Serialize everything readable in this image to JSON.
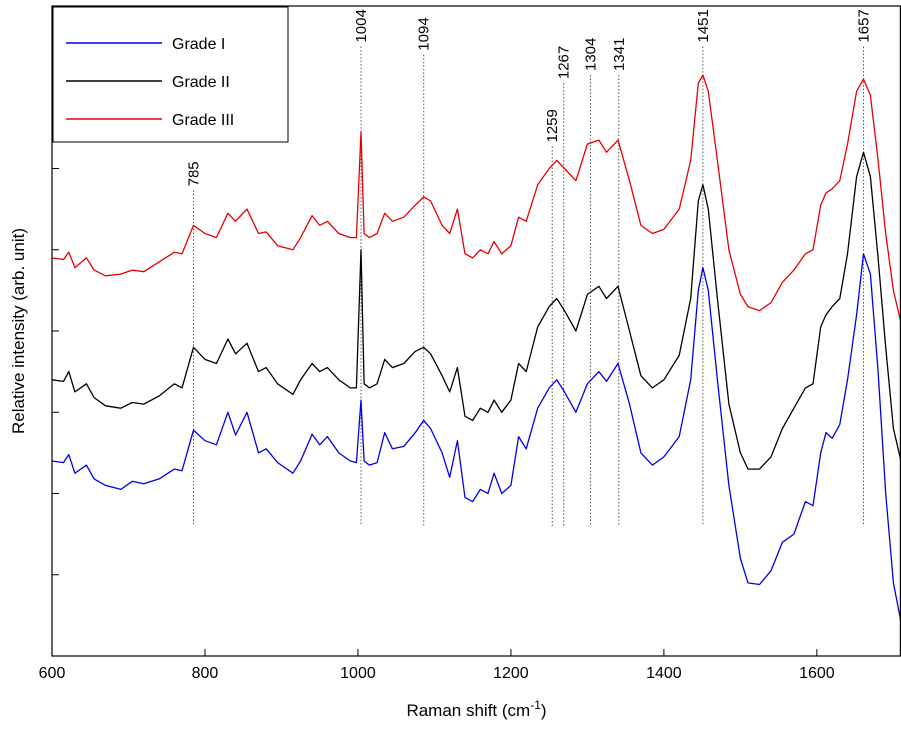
{
  "chart_data": {
    "type": "line",
    "title": "",
    "xlabel": "Raman shift (cm",
    "xlabel_sup": "-1",
    "xlabel_close": ")",
    "ylabel": "Relative intensity (arb. unit)",
    "xlim": [
      600,
      1710
    ],
    "ylim": [
      0,
      8
    ],
    "x_ticks": [
      600,
      800,
      1000,
      1200,
      1400,
      1600
    ],
    "y_ticks_unlabeled": [
      1,
      2,
      3,
      4,
      5,
      6,
      7
    ],
    "grid": false,
    "legend_position": "top-left",
    "legend_box": true,
    "peak_labels": [
      "785",
      "1004",
      "1094",
      "1259",
      "1267",
      "1304",
      "1341",
      "1451",
      "1657"
    ],
    "peak_marker_lines": [
      {
        "x": 785,
        "label": "785"
      },
      {
        "x": 1004,
        "label": "1004"
      },
      {
        "x": 1086,
        "label": "1094"
      },
      {
        "x": 1254,
        "label": "1259"
      },
      {
        "x": 1269,
        "label": "1267"
      },
      {
        "x": 1304,
        "label": "1304"
      },
      {
        "x": 1341,
        "label": "1341"
      },
      {
        "x": 1451,
        "label": "1451"
      },
      {
        "x": 1661,
        "label": "1657"
      }
    ],
    "peak_label_anchor_y": [
      5.78,
      7.55,
      7.45,
      6.32,
      7.1,
      7.2,
      7.2,
      7.55,
      7.55
    ],
    "series": [
      {
        "name": "Grade I",
        "color": "#0000e6",
        "points": [
          [
            600,
            2.4
          ],
          [
            615,
            2.38
          ],
          [
            622,
            2.48
          ],
          [
            630,
            2.25
          ],
          [
            645,
            2.35
          ],
          [
            655,
            2.18
          ],
          [
            670,
            2.1
          ],
          [
            690,
            2.05
          ],
          [
            705,
            2.15
          ],
          [
            720,
            2.12
          ],
          [
            740,
            2.18
          ],
          [
            760,
            2.3
          ],
          [
            770,
            2.28
          ],
          [
            785,
            2.78
          ],
          [
            800,
            2.65
          ],
          [
            815,
            2.6
          ],
          [
            830,
            3.0
          ],
          [
            840,
            2.72
          ],
          [
            855,
            3.0
          ],
          [
            870,
            2.5
          ],
          [
            880,
            2.55
          ],
          [
            895,
            2.38
          ],
          [
            915,
            2.25
          ],
          [
            925,
            2.4
          ],
          [
            940,
            2.73
          ],
          [
            950,
            2.6
          ],
          [
            960,
            2.7
          ],
          [
            975,
            2.5
          ],
          [
            990,
            2.4
          ],
          [
            998,
            2.38
          ],
          [
            1004,
            3.15
          ],
          [
            1008,
            2.4
          ],
          [
            1015,
            2.35
          ],
          [
            1025,
            2.38
          ],
          [
            1035,
            2.75
          ],
          [
            1045,
            2.55
          ],
          [
            1060,
            2.58
          ],
          [
            1075,
            2.75
          ],
          [
            1086,
            2.9
          ],
          [
            1095,
            2.8
          ],
          [
            1110,
            2.5
          ],
          [
            1120,
            2.2
          ],
          [
            1130,
            2.65
          ],
          [
            1140,
            1.95
          ],
          [
            1150,
            1.9
          ],
          [
            1160,
            2.05
          ],
          [
            1170,
            2.0
          ],
          [
            1178,
            2.25
          ],
          [
            1188,
            2.0
          ],
          [
            1200,
            2.1
          ],
          [
            1210,
            2.7
          ],
          [
            1220,
            2.55
          ],
          [
            1235,
            3.05
          ],
          [
            1250,
            3.3
          ],
          [
            1260,
            3.4
          ],
          [
            1270,
            3.25
          ],
          [
            1285,
            3.0
          ],
          [
            1300,
            3.35
          ],
          [
            1315,
            3.5
          ],
          [
            1325,
            3.38
          ],
          [
            1340,
            3.6
          ],
          [
            1355,
            3.1
          ],
          [
            1370,
            2.5
          ],
          [
            1385,
            2.35
          ],
          [
            1400,
            2.45
          ],
          [
            1420,
            2.7
          ],
          [
            1435,
            3.4
          ],
          [
            1445,
            4.5
          ],
          [
            1451,
            4.78
          ],
          [
            1458,
            4.5
          ],
          [
            1470,
            3.4
          ],
          [
            1485,
            2.1
          ],
          [
            1500,
            1.2
          ],
          [
            1510,
            0.9
          ],
          [
            1525,
            0.88
          ],
          [
            1540,
            1.05
          ],
          [
            1555,
            1.4
          ],
          [
            1570,
            1.5
          ],
          [
            1585,
            1.9
          ],
          [
            1595,
            1.85
          ],
          [
            1605,
            2.5
          ],
          [
            1612,
            2.75
          ],
          [
            1620,
            2.68
          ],
          [
            1630,
            2.85
          ],
          [
            1640,
            3.4
          ],
          [
            1652,
            4.2
          ],
          [
            1661,
            4.95
          ],
          [
            1670,
            4.7
          ],
          [
            1680,
            3.5
          ],
          [
            1690,
            2.0
          ],
          [
            1700,
            0.9
          ],
          [
            1710,
            0.42
          ]
        ]
      },
      {
        "name": "Grade II",
        "color": "#000000",
        "points": [
          [
            600,
            3.4
          ],
          [
            615,
            3.38
          ],
          [
            622,
            3.5
          ],
          [
            630,
            3.25
          ],
          [
            645,
            3.35
          ],
          [
            655,
            3.18
          ],
          [
            670,
            3.08
          ],
          [
            690,
            3.05
          ],
          [
            705,
            3.12
          ],
          [
            720,
            3.1
          ],
          [
            740,
            3.2
          ],
          [
            760,
            3.35
          ],
          [
            770,
            3.3
          ],
          [
            785,
            3.8
          ],
          [
            800,
            3.65
          ],
          [
            815,
            3.6
          ],
          [
            830,
            3.9
          ],
          [
            840,
            3.72
          ],
          [
            855,
            3.85
          ],
          [
            870,
            3.5
          ],
          [
            880,
            3.55
          ],
          [
            895,
            3.35
          ],
          [
            915,
            3.22
          ],
          [
            925,
            3.4
          ],
          [
            940,
            3.6
          ],
          [
            950,
            3.5
          ],
          [
            960,
            3.55
          ],
          [
            975,
            3.4
          ],
          [
            990,
            3.3
          ],
          [
            998,
            3.3
          ],
          [
            1004,
            5.0
          ],
          [
            1008,
            3.35
          ],
          [
            1015,
            3.3
          ],
          [
            1025,
            3.35
          ],
          [
            1035,
            3.65
          ],
          [
            1045,
            3.55
          ],
          [
            1060,
            3.6
          ],
          [
            1075,
            3.75
          ],
          [
            1086,
            3.8
          ],
          [
            1095,
            3.72
          ],
          [
            1110,
            3.45
          ],
          [
            1120,
            3.25
          ],
          [
            1130,
            3.55
          ],
          [
            1140,
            2.95
          ],
          [
            1150,
            2.9
          ],
          [
            1160,
            3.05
          ],
          [
            1170,
            3.0
          ],
          [
            1178,
            3.15
          ],
          [
            1188,
            3.0
          ],
          [
            1200,
            3.15
          ],
          [
            1210,
            3.6
          ],
          [
            1220,
            3.5
          ],
          [
            1235,
            4.05
          ],
          [
            1250,
            4.3
          ],
          [
            1260,
            4.4
          ],
          [
            1270,
            4.25
          ],
          [
            1285,
            4.0
          ],
          [
            1300,
            4.45
          ],
          [
            1315,
            4.55
          ],
          [
            1325,
            4.4
          ],
          [
            1340,
            4.55
          ],
          [
            1355,
            4.0
          ],
          [
            1370,
            3.45
          ],
          [
            1385,
            3.3
          ],
          [
            1400,
            3.4
          ],
          [
            1420,
            3.7
          ],
          [
            1435,
            4.4
          ],
          [
            1445,
            5.6
          ],
          [
            1451,
            5.8
          ],
          [
            1458,
            5.5
          ],
          [
            1470,
            4.4
          ],
          [
            1485,
            3.1
          ],
          [
            1500,
            2.5
          ],
          [
            1510,
            2.3
          ],
          [
            1525,
            2.3
          ],
          [
            1540,
            2.45
          ],
          [
            1555,
            2.8
          ],
          [
            1570,
            3.05
          ],
          [
            1585,
            3.3
          ],
          [
            1595,
            3.35
          ],
          [
            1605,
            4.05
          ],
          [
            1612,
            4.2
          ],
          [
            1620,
            4.3
          ],
          [
            1630,
            4.4
          ],
          [
            1640,
            4.95
          ],
          [
            1652,
            5.9
          ],
          [
            1661,
            6.2
          ],
          [
            1670,
            5.9
          ],
          [
            1680,
            4.9
          ],
          [
            1690,
            3.8
          ],
          [
            1700,
            2.8
          ],
          [
            1710,
            2.4
          ]
        ]
      },
      {
        "name": "Grade III",
        "color": "#e60000",
        "points": [
          [
            600,
            4.9
          ],
          [
            615,
            4.88
          ],
          [
            622,
            4.97
          ],
          [
            630,
            4.78
          ],
          [
            645,
            4.9
          ],
          [
            655,
            4.75
          ],
          [
            670,
            4.68
          ],
          [
            690,
            4.7
          ],
          [
            705,
            4.75
          ],
          [
            720,
            4.73
          ],
          [
            740,
            4.85
          ],
          [
            760,
            4.97
          ],
          [
            770,
            4.95
          ],
          [
            785,
            5.3
          ],
          [
            800,
            5.2
          ],
          [
            815,
            5.15
          ],
          [
            830,
            5.45
          ],
          [
            840,
            5.35
          ],
          [
            855,
            5.5
          ],
          [
            870,
            5.2
          ],
          [
            880,
            5.22
          ],
          [
            895,
            5.05
          ],
          [
            915,
            5.0
          ],
          [
            925,
            5.15
          ],
          [
            940,
            5.42
          ],
          [
            950,
            5.3
          ],
          [
            960,
            5.35
          ],
          [
            975,
            5.2
          ],
          [
            990,
            5.15
          ],
          [
            998,
            5.15
          ],
          [
            1004,
            6.45
          ],
          [
            1008,
            5.2
          ],
          [
            1015,
            5.15
          ],
          [
            1025,
            5.2
          ],
          [
            1035,
            5.45
          ],
          [
            1045,
            5.35
          ],
          [
            1060,
            5.4
          ],
          [
            1075,
            5.55
          ],
          [
            1086,
            5.65
          ],
          [
            1095,
            5.6
          ],
          [
            1110,
            5.3
          ],
          [
            1120,
            5.2
          ],
          [
            1130,
            5.5
          ],
          [
            1140,
            4.95
          ],
          [
            1150,
            4.9
          ],
          [
            1160,
            5.0
          ],
          [
            1170,
            4.95
          ],
          [
            1178,
            5.1
          ],
          [
            1188,
            4.95
          ],
          [
            1200,
            5.05
          ],
          [
            1210,
            5.4
          ],
          [
            1220,
            5.35
          ],
          [
            1235,
            5.8
          ],
          [
            1250,
            6.0
          ],
          [
            1260,
            6.1
          ],
          [
            1270,
            6.0
          ],
          [
            1285,
            5.85
          ],
          [
            1300,
            6.3
          ],
          [
            1315,
            6.35
          ],
          [
            1325,
            6.2
          ],
          [
            1340,
            6.35
          ],
          [
            1355,
            5.85
          ],
          [
            1370,
            5.3
          ],
          [
            1385,
            5.2
          ],
          [
            1400,
            5.25
          ],
          [
            1420,
            5.5
          ],
          [
            1435,
            6.1
          ],
          [
            1445,
            7.05
          ],
          [
            1451,
            7.15
          ],
          [
            1458,
            6.95
          ],
          [
            1470,
            6.1
          ],
          [
            1485,
            5.0
          ],
          [
            1500,
            4.45
          ],
          [
            1510,
            4.3
          ],
          [
            1525,
            4.25
          ],
          [
            1540,
            4.35
          ],
          [
            1555,
            4.6
          ],
          [
            1570,
            4.75
          ],
          [
            1585,
            4.95
          ],
          [
            1595,
            5.0
          ],
          [
            1605,
            5.55
          ],
          [
            1612,
            5.7
          ],
          [
            1620,
            5.75
          ],
          [
            1630,
            5.85
          ],
          [
            1640,
            6.3
          ],
          [
            1652,
            6.95
          ],
          [
            1661,
            7.1
          ],
          [
            1670,
            6.9
          ],
          [
            1680,
            6.1
          ],
          [
            1690,
            5.2
          ],
          [
            1700,
            4.5
          ],
          [
            1710,
            4.1
          ]
        ]
      }
    ]
  }
}
